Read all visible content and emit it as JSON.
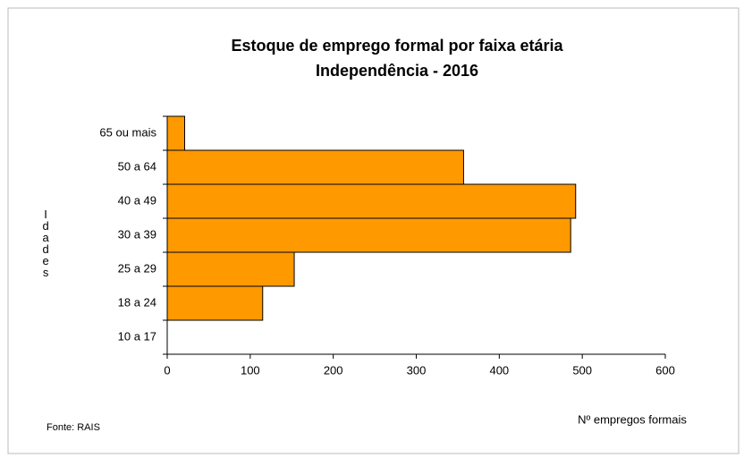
{
  "chart_data": {
    "type": "barh",
    "title": "Estoque  de emprego formal por faixa etária",
    "subtitle": "Independência  - 2016",
    "y_label": "Idades",
    "x_label": "Nº empregos formais",
    "source": "Fonte: RAIS",
    "categories": [
      "65 ou mais",
      "50 a 64",
      "40 a 49",
      "30 a 39",
      "25 a 29",
      "18 a 24",
      "10 a 17"
    ],
    "values": [
      21,
      357,
      492,
      486,
      153,
      115,
      0
    ],
    "color": "#ff9900",
    "xlim": [
      0,
      600
    ],
    "xticks": [
      0,
      100,
      200,
      300,
      400,
      500,
      600
    ]
  }
}
